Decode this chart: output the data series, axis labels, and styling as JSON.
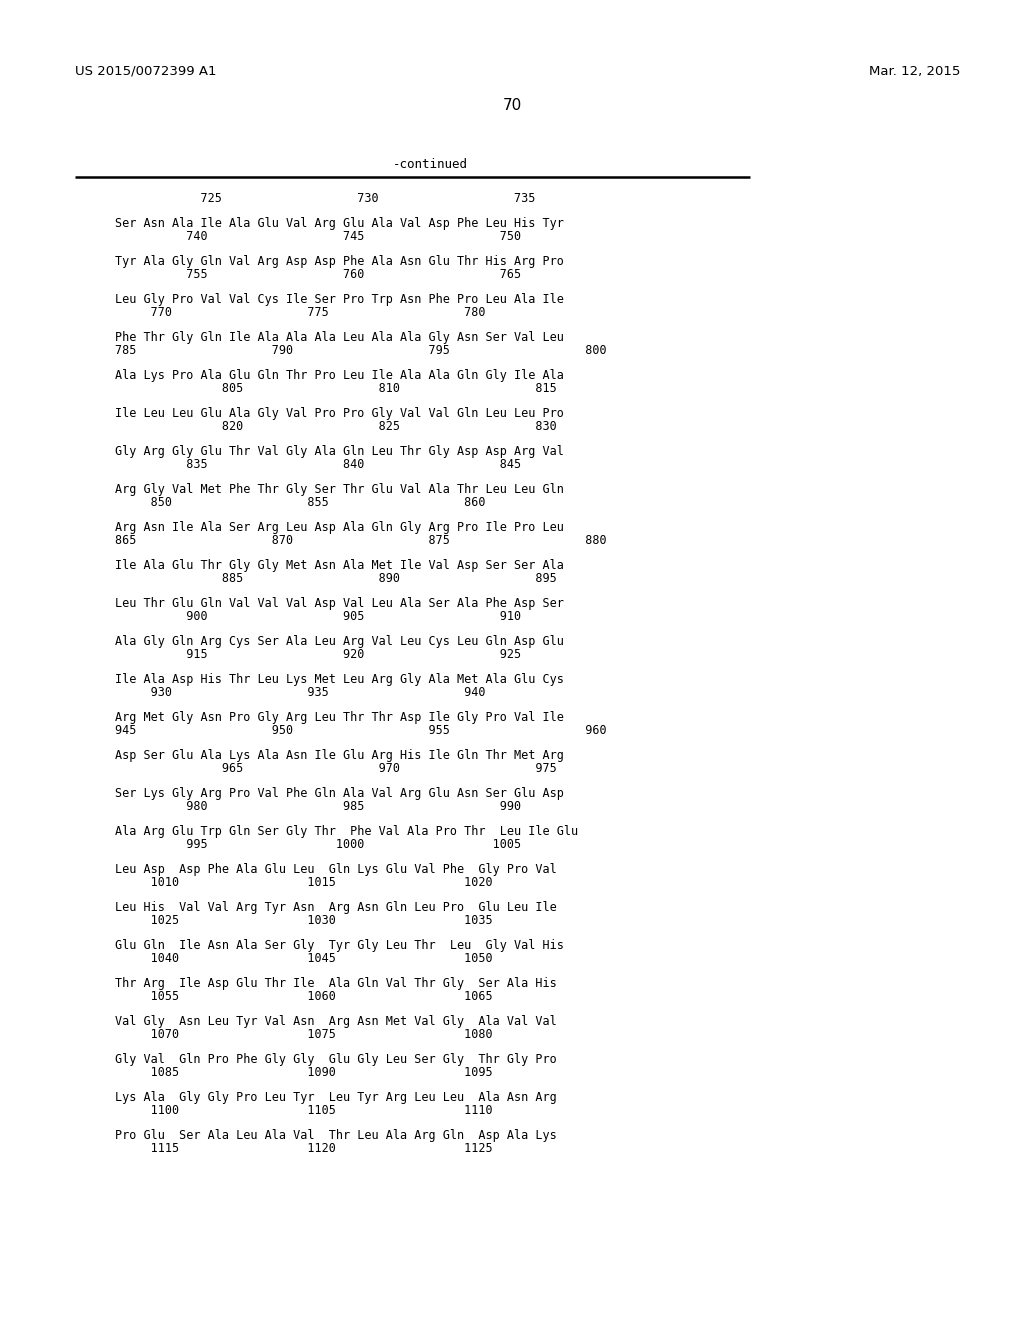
{
  "header_left": "US 2015/0072399 A1",
  "header_right": "Mar. 12, 2015",
  "page_number": "70",
  "continued_label": "-continued",
  "background_color": "#ffffff",
  "text_color": "#000000",
  "lines": [
    [
      "Ser Asn Ala Ile Ala Glu Val Arg Glu Ala Val Asp Phe Leu His Tyr",
      "          740                   745                   750"
    ],
    [
      "Tyr Ala Gly Gln Val Arg Asp Asp Phe Ala Asn Glu Thr His Arg Pro",
      "          755                   760                   765"
    ],
    [
      "Leu Gly Pro Val Val Cys Ile Ser Pro Trp Asn Phe Pro Leu Ala Ile",
      "     770                   775                   780"
    ],
    [
      "Phe Thr Gly Gln Ile Ala Ala Ala Leu Ala Ala Gly Asn Ser Val Leu",
      "785                   790                   795                   800"
    ],
    [
      "Ala Lys Pro Ala Glu Gln Thr Pro Leu Ile Ala Ala Gln Gly Ile Ala",
      "               805                   810                   815"
    ],
    [
      "Ile Leu Leu Glu Ala Gly Val Pro Pro Gly Val Val Gln Leu Leu Pro",
      "               820                   825                   830"
    ],
    [
      "Gly Arg Gly Glu Thr Val Gly Ala Gln Leu Thr Gly Asp Asp Arg Val",
      "          835                   840                   845"
    ],
    [
      "Arg Gly Val Met Phe Thr Gly Ser Thr Glu Val Ala Thr Leu Leu Gln",
      "     850                   855                   860"
    ],
    [
      "Arg Asn Ile Ala Ser Arg Leu Asp Ala Gln Gly Arg Pro Ile Pro Leu",
      "865                   870                   875                   880"
    ],
    [
      "Ile Ala Glu Thr Gly Gly Met Asn Ala Met Ile Val Asp Ser Ser Ala",
      "               885                   890                   895"
    ],
    [
      "Leu Thr Glu Gln Val Val Val Asp Val Leu Ala Ser Ala Phe Asp Ser",
      "          900                   905                   910"
    ],
    [
      "Ala Gly Gln Arg Cys Ser Ala Leu Arg Val Leu Cys Leu Gln Asp Glu",
      "          915                   920                   925"
    ],
    [
      "Ile Ala Asp His Thr Leu Lys Met Leu Arg Gly Ala Met Ala Glu Cys",
      "     930                   935                   940"
    ],
    [
      "Arg Met Gly Asn Pro Gly Arg Leu Thr Thr Asp Ile Gly Pro Val Ile",
      "945                   950                   955                   960"
    ],
    [
      "Asp Ser Glu Ala Lys Ala Asn Ile Glu Arg His Ile Gln Thr Met Arg",
      "               965                   970                   975"
    ],
    [
      "Ser Lys Gly Arg Pro Val Phe Gln Ala Val Arg Glu Asn Ser Glu Asp",
      "          980                   985                   990"
    ],
    [
      "Ala Arg Glu Trp Gln Ser Gly Thr  Phe Val Ala Pro Thr  Leu Ile Glu",
      "          995                  1000                  1005"
    ],
    [
      "Leu Asp  Asp Phe Ala Glu Leu  Gln Lys Glu Val Phe  Gly Pro Val",
      "     1010                  1015                  1020"
    ],
    [
      "Leu His  Val Val Arg Tyr Asn  Arg Asn Gln Leu Pro  Glu Leu Ile",
      "     1025                  1030                  1035"
    ],
    [
      "Glu Gln  Ile Asn Ala Ser Gly  Tyr Gly Leu Thr  Leu  Gly Val His",
      "     1040                  1045                  1050"
    ],
    [
      "Thr Arg  Ile Asp Glu Thr Ile  Ala Gln Val Thr Gly  Ser Ala His",
      "     1055                  1060                  1065"
    ],
    [
      "Val Gly  Asn Leu Tyr Val Asn  Arg Asn Met Val Gly  Ala Val Val",
      "     1070                  1075                  1080"
    ],
    [
      "Gly Val  Gln Pro Phe Gly Gly  Glu Gly Leu Ser Gly  Thr Gly Pro",
      "     1085                  1090                  1095"
    ],
    [
      "Lys Ala  Gly Gly Pro Leu Tyr  Leu Tyr Arg Leu Leu  Ala Asn Arg",
      "     1100                  1105                  1110"
    ],
    [
      "Pro Glu  Ser Ala Leu Ala Val  Thr Leu Ala Arg Gln  Asp Ala Lys",
      "     1115                  1120                  1125"
    ]
  ],
  "ruler_line": "            725                   730                   735"
}
